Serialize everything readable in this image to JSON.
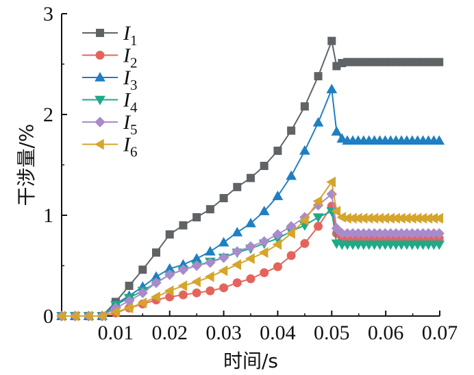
{
  "chart_data": {
    "type": "line",
    "title": "",
    "xlabel": "时间/s",
    "ylabel": "干涉量/%",
    "xlim": [
      0,
      0.07
    ],
    "ylim": [
      0,
      3
    ],
    "x_ticks": [
      "0.01",
      "0.02",
      "0.03",
      "0.04",
      "0.05",
      "0.06",
      "0.07"
    ],
    "x_tick_values": [
      0.01,
      0.02,
      0.03,
      0.04,
      0.05,
      0.06,
      0.07
    ],
    "y_ticks": [
      "0",
      "1",
      "2",
      "3"
    ],
    "y_tick_values": [
      0,
      1,
      2,
      3
    ],
    "grid": false,
    "legend_position": "top-left",
    "x": [
      0.0,
      0.0025,
      0.005,
      0.0075,
      0.01,
      0.0125,
      0.015,
      0.0175,
      0.02,
      0.0225,
      0.025,
      0.0275,
      0.03,
      0.0325,
      0.035,
      0.0375,
      0.04,
      0.0425,
      0.045,
      0.0475,
      0.05,
      0.0509,
      0.0519,
      0.0529,
      0.0539,
      0.0549,
      0.0559,
      0.0569,
      0.0579,
      0.0589,
      0.0599,
      0.0609,
      0.0619,
      0.0629,
      0.0639,
      0.0649,
      0.0659,
      0.0669,
      0.0679,
      0.0689,
      0.0699
    ],
    "series": [
      {
        "name": "I",
        "sub": "1",
        "color": "#5f6366",
        "marker": "square",
        "values": [
          0,
          0,
          0,
          0,
          0.14,
          0.3,
          0.46,
          0.63,
          0.81,
          0.9,
          0.98,
          1.06,
          1.17,
          1.28,
          1.37,
          1.49,
          1.64,
          1.84,
          2.08,
          2.38,
          2.73,
          2.48,
          2.51,
          2.52,
          2.52,
          2.52,
          2.52,
          2.52,
          2.52,
          2.52,
          2.52,
          2.52,
          2.52,
          2.52,
          2.52,
          2.52,
          2.52,
          2.52,
          2.52,
          2.52,
          2.52
        ]
      },
      {
        "name": "I",
        "sub": "2",
        "color": "#e4645c",
        "marker": "circle",
        "values": [
          0,
          0,
          0,
          0,
          0.03,
          0.08,
          0.12,
          0.16,
          0.19,
          0.21,
          0.23,
          0.25,
          0.28,
          0.33,
          0.37,
          0.43,
          0.49,
          0.6,
          0.72,
          0.89,
          1.09,
          0.82,
          0.77,
          0.77,
          0.77,
          0.77,
          0.77,
          0.77,
          0.77,
          0.77,
          0.77,
          0.77,
          0.77,
          0.77,
          0.77,
          0.77,
          0.77,
          0.77,
          0.77,
          0.77,
          0.77
        ]
      },
      {
        "name": "I",
        "sub": "3",
        "color": "#1f7fc2",
        "marker": "triangle-up",
        "values": [
          0,
          0,
          0,
          0,
          0.12,
          0.2,
          0.29,
          0.39,
          0.47,
          0.51,
          0.57,
          0.64,
          0.73,
          0.83,
          0.92,
          1.04,
          1.19,
          1.39,
          1.64,
          1.92,
          2.25,
          1.83,
          1.76,
          1.74,
          1.74,
          1.74,
          1.74,
          1.74,
          1.74,
          1.74,
          1.74,
          1.74,
          1.74,
          1.74,
          1.74,
          1.74,
          1.74,
          1.74,
          1.74,
          1.74,
          1.74
        ]
      },
      {
        "name": "I",
        "sub": "4",
        "color": "#1fa987",
        "marker": "triangle-down",
        "values": [
          0,
          0,
          0,
          0,
          0.11,
          0.18,
          0.25,
          0.33,
          0.41,
          0.46,
          0.5,
          0.54,
          0.58,
          0.63,
          0.67,
          0.72,
          0.77,
          0.84,
          0.9,
          0.98,
          1.04,
          0.72,
          0.71,
          0.71,
          0.71,
          0.71,
          0.71,
          0.71,
          0.71,
          0.71,
          0.71,
          0.71,
          0.71,
          0.71,
          0.71,
          0.71,
          0.71,
          0.71,
          0.71,
          0.71,
          0.71
        ]
      },
      {
        "name": "I",
        "sub": "5",
        "color": "#a98acb",
        "marker": "diamond",
        "values": [
          0,
          0,
          0,
          0,
          0.08,
          0.15,
          0.23,
          0.33,
          0.41,
          0.46,
          0.5,
          0.53,
          0.58,
          0.64,
          0.69,
          0.74,
          0.81,
          0.89,
          0.98,
          1.1,
          1.21,
          0.87,
          0.82,
          0.82,
          0.82,
          0.82,
          0.82,
          0.82,
          0.82,
          0.82,
          0.82,
          0.82,
          0.82,
          0.82,
          0.82,
          0.82,
          0.82,
          0.82,
          0.82,
          0.82,
          0.82
        ]
      },
      {
        "name": "I",
        "sub": "6",
        "color": "#d5a52c",
        "marker": "triangle-left",
        "values": [
          0,
          0,
          0,
          0,
          0.04,
          0.08,
          0.13,
          0.19,
          0.25,
          0.3,
          0.34,
          0.39,
          0.45,
          0.51,
          0.57,
          0.63,
          0.71,
          0.82,
          0.95,
          1.14,
          1.33,
          1.04,
          0.98,
          0.97,
          0.97,
          0.97,
          0.97,
          0.97,
          0.97,
          0.97,
          0.97,
          0.97,
          0.97,
          0.97,
          0.97,
          0.97,
          0.97,
          0.97,
          0.97,
          0.97,
          0.97
        ]
      }
    ]
  }
}
